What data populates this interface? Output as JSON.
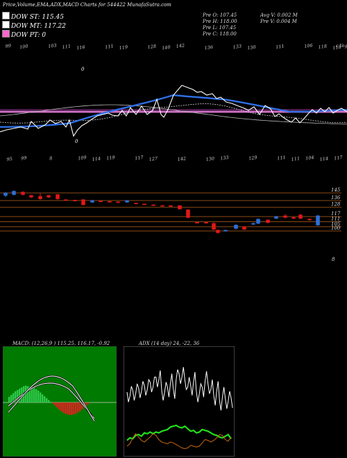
{
  "header": {
    "title": "Price,Volume,EMA,ADX,MACD Charts for 544422",
    "site": "MunafaSutra.com"
  },
  "legend": [
    {
      "label": "DOW ST: 115.45",
      "color": "#ffffff"
    },
    {
      "label": "DOW MT: 117.22",
      "color": "#ffffff"
    },
    {
      "label": "DOW PT: 0",
      "color": "#ff66cc"
    }
  ],
  "stats": {
    "pre_open": "Pre  O: 107.45",
    "pre_high": "Pre  H: 118.00",
    "pre_low": "Pre  L: 107.45",
    "pre_close": "Pre  C: 118.00",
    "avg_vol": "Avg V: 0.002  M",
    "pre_vol": "Pre  V: 0.004  M"
  },
  "colors": {
    "up": "#2e6fd6",
    "down": "#e01818",
    "ema_blue": "#2f6fe6",
    "pink": "#d070c8",
    "grid": "#8b4a14",
    "macd_hist": "#2ec94a",
    "macd_hist_neg": "#e02020",
    "macd_bg": "#007a00",
    "adx_green": "#22e01a",
    "adx_orange": "#c86a10"
  },
  "macd_caption": "MACD: (12,26,9 ) 115.25,  116.17, -0.92",
  "adx_caption": "ADX             (14  day) 24,  -22,  36",
  "chart_data": [
    {
      "type": "line",
      "name": "ema-panel",
      "top_labels": [
        "99",
        "100",
        "",
        "103",
        "111",
        "116",
        "",
        "111",
        "119",
        "",
        "128",
        "140",
        "142",
        "",
        "136",
        "",
        "133",
        "130",
        "",
        "111",
        "",
        "106",
        "118",
        "118"
      ],
      "bottom_labels": [
        "95",
        "99",
        "",
        "8",
        "",
        "109",
        "114",
        "119",
        "",
        "117",
        "127",
        "",
        "142",
        "",
        "130",
        "133",
        "",
        "129",
        "",
        "111",
        "111",
        "104",
        "114",
        "117"
      ],
      "tr_label": "c Vega"
    },
    {
      "type": "candlestick",
      "name": "price-panel",
      "levels": [
        145,
        136,
        128,
        117,
        111,
        105,
        100
      ],
      "extra_label": "8",
      "candles": [
        {
          "x": 8,
          "open": 142,
          "close": 145,
          "high": 146,
          "low": 140
        },
        {
          "x": 20,
          "open": 143,
          "close": 147,
          "high": 148,
          "low": 142
        },
        {
          "x": 33,
          "open": 146,
          "close": 143,
          "high": 147,
          "low": 142
        },
        {
          "x": 45,
          "open": 142,
          "close": 140,
          "high": 143,
          "low": 139
        },
        {
          "x": 58,
          "open": 141,
          "close": 138,
          "high": 145,
          "low": 137
        },
        {
          "x": 70,
          "open": 142,
          "close": 140,
          "high": 143,
          "low": 139
        },
        {
          "x": 83,
          "open": 143,
          "close": 138,
          "high": 144,
          "low": 137
        },
        {
          "x": 95,
          "open": 137,
          "close": 136.5,
          "high": 137.5,
          "low": 136
        },
        {
          "x": 108,
          "open": 136.5,
          "close": 135.5,
          "high": 137,
          "low": 135
        },
        {
          "x": 120,
          "open": 137,
          "close": 131,
          "high": 138,
          "low": 130
        },
        {
          "x": 133,
          "open": 134,
          "close": 136,
          "high": 137,
          "low": 133
        },
        {
          "x": 145,
          "open": 135.5,
          "close": 134.5,
          "high": 136,
          "low": 134
        },
        {
          "x": 158,
          "open": 135,
          "close": 134.2,
          "high": 135.5,
          "low": 133.8
        },
        {
          "x": 170,
          "open": 134.5,
          "close": 133.9,
          "high": 135,
          "low": 133.5
        },
        {
          "x": 183,
          "open": 134,
          "close": 136,
          "high": 136.5,
          "low": 133.5
        },
        {
          "x": 196,
          "open": 133,
          "close": 132.6,
          "high": 133.4,
          "low": 132.2
        },
        {
          "x": 208,
          "open": 132,
          "close": 131.6,
          "high": 132.4,
          "low": 131.2
        },
        {
          "x": 221,
          "open": 131,
          "close": 130.6,
          "high": 131.4,
          "low": 130.2
        },
        {
          "x": 234,
          "open": 130.2,
          "close": 129.8,
          "high": 130.6,
          "low": 129.4
        },
        {
          "x": 246,
          "open": 130,
          "close": 129.6,
          "high": 130.4,
          "low": 129.2
        },
        {
          "x": 259,
          "open": 130,
          "close": 126,
          "high": 130.5,
          "low": 125.5
        },
        {
          "x": 271,
          "open": 125,
          "close": 116,
          "high": 125.5,
          "low": 115
        },
        {
          "x": 284,
          "open": 110.2,
          "close": 109.8,
          "high": 110.6,
          "low": 109.4
        },
        {
          "x": 297,
          "open": 110.2,
          "close": 109.8,
          "high": 110.6,
          "low": 109.4
        },
        {
          "x": 308,
          "open": 109,
          "close": 102,
          "high": 110,
          "low": 101
        },
        {
          "x": 314,
          "open": 101,
          "close": 98,
          "high": 102,
          "low": 97
        },
        {
          "x": 325,
          "open": 100,
          "close": 101,
          "high": 101.5,
          "low": 99
        },
        {
          "x": 340,
          "open": 103,
          "close": 107,
          "high": 108,
          "low": 102
        },
        {
          "x": 352,
          "open": 105,
          "close": 102,
          "high": 106,
          "low": 101
        },
        {
          "x": 365,
          "open": 108,
          "close": 109,
          "high": 110,
          "low": 107
        },
        {
          "x": 372,
          "open": 109,
          "close": 114,
          "high": 115,
          "low": 108
        },
        {
          "x": 386,
          "open": 113,
          "close": 110,
          "high": 114,
          "low": 109
        },
        {
          "x": 398,
          "open": 115,
          "close": 117,
          "high": 118,
          "low": 114
        },
        {
          "x": 411,
          "open": 118,
          "close": 116,
          "high": 120,
          "low": 115
        },
        {
          "x": 423,
          "open": 116,
          "close": 115,
          "high": 117,
          "low": 114
        },
        {
          "x": 433,
          "open": 119,
          "close": 115,
          "high": 120,
          "low": 114
        },
        {
          "x": 446,
          "open": 114,
          "close": 113,
          "high": 115,
          "low": 112
        },
        {
          "x": 458,
          "open": 107,
          "close": 118,
          "high": 119,
          "low": 106
        }
      ]
    },
    {
      "type": "bar",
      "name": "macd-panel",
      "hist": [
        0.9,
        1.2,
        1.5,
        1.8,
        2.0,
        2.2,
        2.4,
        2.6,
        2.7,
        2.6,
        2.5,
        2.4,
        2.3,
        2.1,
        1.9,
        1.6,
        1.3,
        1.0,
        0.7,
        0.4,
        0.1,
        -0.2,
        -0.5,
        -0.8,
        -1.1,
        -1.4,
        -1.6,
        -1.8,
        -1.9,
        -2.0,
        -2.0,
        -1.9,
        -1.8,
        -1.6,
        -1.4,
        -1.1,
        -0.8,
        -0.5,
        -0.2
      ]
    },
    {
      "type": "line",
      "name": "adx-panel",
      "series": [
        {
          "values": [
            7,
            6.5,
            7.2,
            6.8,
            7.5,
            7.1,
            7.8,
            7.3,
            8.2,
            7.6,
            8.8,
            8.4,
            7.2,
            7.0,
            7.6,
            8.0,
            7.4,
            8.5,
            9.2,
            8.8,
            8.5,
            7.6,
            7.8,
            8.2,
            7.0,
            6.8,
            7.6,
            8.3,
            8.0,
            7.3,
            6.6,
            7.1,
            6.0,
            6.4,
            6.2,
            5.9,
            6.3
          ]
        },
        {
          "values": [
            1.2,
            1.5,
            1.4,
            1.8,
            1.9,
            1.7,
            2.1,
            2.0,
            2.2,
            2.0,
            2.2,
            2.1,
            2.3,
            2.4,
            2.5,
            2.8,
            2.9,
            3.0,
            2.8,
            2.7,
            2.9,
            2.6,
            2.3,
            2.4,
            2.1,
            2.2,
            2.5,
            2.4,
            2.3,
            2.1,
            1.9,
            1.8,
            1.6,
            1.5,
            1.7,
            1.9,
            1.4
          ]
        },
        {
          "values": [
            0.5,
            0.8,
            1.5,
            2.0,
            1.6,
            1.2,
            1.0,
            1.3,
            1.6,
            2.0,
            1.8,
            1.3,
            1.0,
            0.9,
            0.8,
            1.0,
            0.9,
            0.7,
            0.5,
            0.3,
            0.2,
            0.3,
            0.6,
            0.5,
            0.4,
            0.5,
            0.9,
            1.3,
            1.2,
            1.0,
            1.2,
            1.5,
            1.9,
            1.8,
            1.3,
            1.1,
            1.6
          ]
        }
      ]
    }
  ]
}
